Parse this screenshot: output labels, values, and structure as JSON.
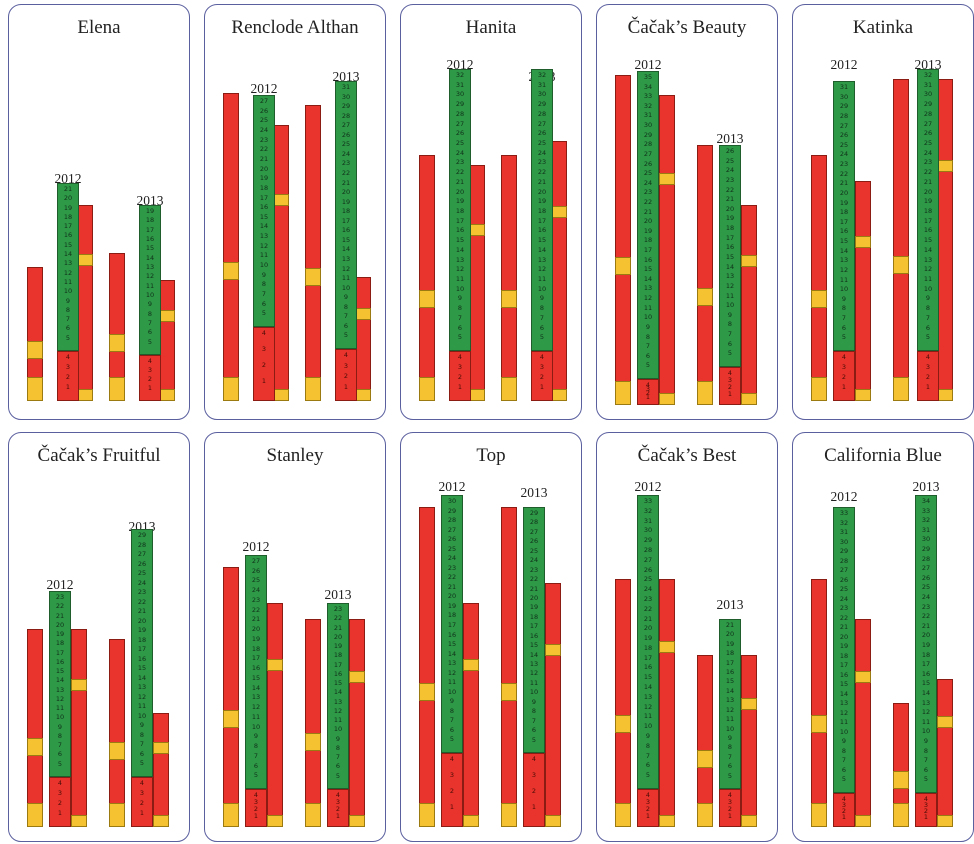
{
  "figure": {
    "cultivars": [
      {
        "name": "Elena",
        "years": [
          "2012",
          "2013"
        ]
      },
      {
        "name": "Renclode Althan",
        "years": [
          "2012",
          "2013"
        ]
      },
      {
        "name": "Hanita",
        "years": [
          "2012",
          "2013"
        ]
      },
      {
        "name": "Čačak’s Beauty",
        "years": [
          "2012",
          "2013"
        ]
      },
      {
        "name": "Katinka",
        "years": [
          "2012",
          "2013"
        ]
      },
      {
        "name": "Čačak’s Fruitful",
        "years": [
          "2012",
          "2013"
        ]
      },
      {
        "name": "Stanley",
        "years": [
          "2012",
          "2013"
        ]
      },
      {
        "name": "Top",
        "years": [
          "2012",
          "2013"
        ]
      },
      {
        "name": "Čačak’s Best",
        "years": [
          "2012",
          "2013"
        ]
      },
      {
        "name": "California Blue",
        "years": [
          "2012",
          "2013"
        ]
      }
    ],
    "colors": {
      "border": "#5a5f9e",
      "green": "#2e9a47",
      "red": "#e8342c",
      "yellow": "#f5c231"
    }
  }
}
